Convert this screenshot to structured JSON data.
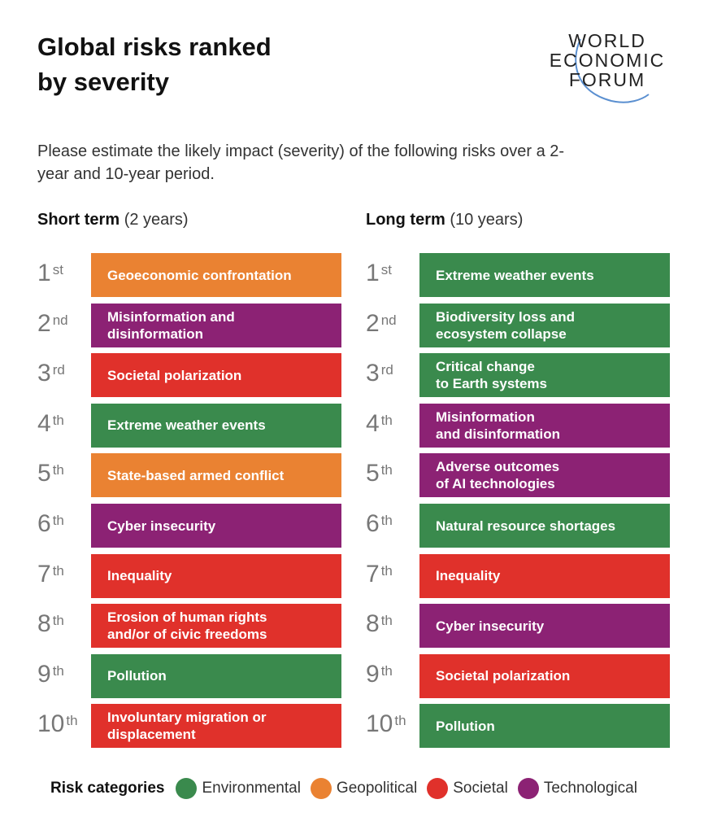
{
  "title": [
    "Global risks ranked",
    "by severity"
  ],
  "logo": {
    "lines": [
      "WORLD",
      "ECONOMIC",
      "FORUM"
    ]
  },
  "subtitle": "Please estimate the likely impact (severity) of the following risks over a 2-year and 10-year period.",
  "colors": {
    "Environmental": "#3a8a4d",
    "Geopolitical": "#ea8232",
    "Societal": "#e0312b",
    "Technological": "#8c2274"
  },
  "short_term": {
    "heading": "Short term",
    "period": "(2 years)",
    "items": [
      {
        "rank": "1",
        "suffix": "st",
        "label": "Geoeconomic confrontation",
        "category": "Geopolitical"
      },
      {
        "rank": "2",
        "suffix": "nd",
        "label": "Misinformation and\ndisinformation",
        "category": "Technological"
      },
      {
        "rank": "3",
        "suffix": "rd",
        "label": "Societal polarization",
        "category": "Societal"
      },
      {
        "rank": "4",
        "suffix": "th",
        "label": "Extreme weather events",
        "category": "Environmental"
      },
      {
        "rank": "5",
        "suffix": "th",
        "label": "State-based armed conflict",
        "category": "Geopolitical"
      },
      {
        "rank": "6",
        "suffix": "th",
        "label": "Cyber insecurity",
        "category": "Technological"
      },
      {
        "rank": "7",
        "suffix": "th",
        "label": "Inequality",
        "category": "Societal"
      },
      {
        "rank": "8",
        "suffix": "th",
        "label": "Erosion of human rights\nand/or of civic freedoms",
        "category": "Societal"
      },
      {
        "rank": "9",
        "suffix": "th",
        "label": "Pollution",
        "category": "Environmental"
      },
      {
        "rank": "10",
        "suffix": "th",
        "label": "Involuntary migration or\ndisplacement",
        "category": "Societal"
      }
    ]
  },
  "long_term": {
    "heading": "Long term",
    "period": "(10 years)",
    "items": [
      {
        "rank": "1",
        "suffix": "st",
        "label": "Extreme weather events",
        "category": "Environmental"
      },
      {
        "rank": "2",
        "suffix": "nd",
        "label": "Biodiversity loss and\necosystem collapse",
        "category": "Environmental"
      },
      {
        "rank": "3",
        "suffix": "rd",
        "label": "Critical change\nto Earth systems",
        "category": "Environmental"
      },
      {
        "rank": "4",
        "suffix": "th",
        "label": "Misinformation\nand disinformation",
        "category": "Technological"
      },
      {
        "rank": "5",
        "suffix": "th",
        "label": "Adverse outcomes\nof AI technologies",
        "category": "Technological"
      },
      {
        "rank": "6",
        "suffix": "th",
        "label": "Natural resource shortages",
        "category": "Environmental"
      },
      {
        "rank": "7",
        "suffix": "th",
        "label": "Inequality",
        "category": "Societal"
      },
      {
        "rank": "8",
        "suffix": "th",
        "label": "Cyber insecurity",
        "category": "Technological"
      },
      {
        "rank": "9",
        "suffix": "th",
        "label": "Societal polarization",
        "category": "Societal"
      },
      {
        "rank": "10",
        "suffix": "th",
        "label": "Pollution",
        "category": "Environmental"
      }
    ]
  },
  "legend": {
    "label": "Risk categories",
    "items": [
      "Environmental",
      "Geopolitical",
      "Societal",
      "Technological"
    ]
  }
}
